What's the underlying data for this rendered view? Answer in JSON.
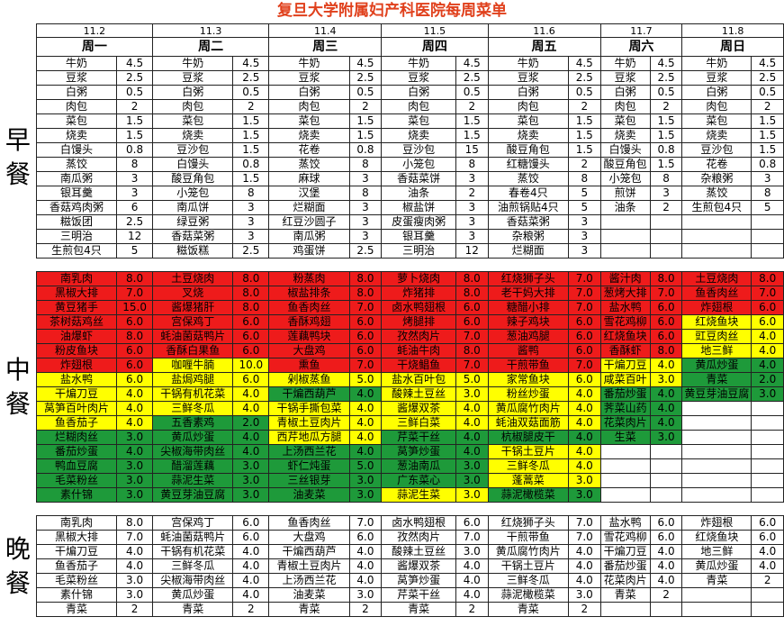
{
  "title": "复旦大学附属妇产科医院每周菜单",
  "days": [
    {
      "date": "11.2",
      "name": "周一"
    },
    {
      "date": "11.3",
      "name": "周二"
    },
    {
      "date": "11.4",
      "name": "周三"
    },
    {
      "date": "11.5",
      "name": "周四"
    },
    {
      "date": "11.6",
      "name": "周五"
    },
    {
      "date": "11.7",
      "name": "周六"
    },
    {
      "date": "11.8",
      "name": "周日"
    }
  ],
  "meals": {
    "breakfast": "早餐",
    "lunch": "中餐",
    "dinner": "晚餐"
  },
  "colors": {
    "red": "#ee1b1b",
    "yellow": "#ffff00",
    "green": "#1e9a3a",
    "title": "#e0401c"
  },
  "breakfast": [
    [
      [
        "牛奶",
        "4.5"
      ],
      [
        "牛奶",
        "4.5"
      ],
      [
        "牛奶",
        "4.5"
      ],
      [
        "牛奶",
        "4.5"
      ],
      [
        "牛奶",
        "4.5"
      ],
      [
        "牛奶",
        "4.5"
      ],
      [
        "牛奶",
        "4.5"
      ]
    ],
    [
      [
        "豆浆",
        "2.5"
      ],
      [
        "豆浆",
        "2.5"
      ],
      [
        "豆浆",
        "2.5"
      ],
      [
        "豆浆",
        "2.5"
      ],
      [
        "豆浆",
        "2.5"
      ],
      [
        "豆浆",
        "2.5"
      ],
      [
        "豆浆",
        "2.5"
      ]
    ],
    [
      [
        "白粥",
        "0.5"
      ],
      [
        "白粥",
        "0.5"
      ],
      [
        "白粥",
        "0.5"
      ],
      [
        "白粥",
        "0.5"
      ],
      [
        "白粥",
        "0.5"
      ],
      [
        "白粥",
        "0.5"
      ],
      [
        "白粥",
        "0.5"
      ]
    ],
    [
      [
        "肉包",
        "2"
      ],
      [
        "肉包",
        "2"
      ],
      [
        "肉包",
        "2"
      ],
      [
        "肉包",
        "2"
      ],
      [
        "肉包",
        "2"
      ],
      [
        "肉包",
        "2"
      ],
      [
        "肉包",
        "2"
      ]
    ],
    [
      [
        "菜包",
        "1.5"
      ],
      [
        "菜包",
        "1.5"
      ],
      [
        "菜包",
        "1.5"
      ],
      [
        "菜包",
        "1.5"
      ],
      [
        "菜包",
        "1.5"
      ],
      [
        "菜包",
        "1.5"
      ],
      [
        "菜包",
        "1.5"
      ]
    ],
    [
      [
        "烧卖",
        "1.5"
      ],
      [
        "烧卖",
        "1.5"
      ],
      [
        "烧卖",
        "1.5"
      ],
      [
        "烧卖",
        "1.5"
      ],
      [
        "烧卖",
        "1.5"
      ],
      [
        "烧卖",
        "1.5"
      ],
      [
        "烧卖",
        "1.5"
      ]
    ],
    [
      [
        "白馒头",
        "0.8"
      ],
      [
        "豆沙包",
        "1.5"
      ],
      [
        "花卷",
        "0.8"
      ],
      [
        "豆沙包",
        "15"
      ],
      [
        "酸豆角包",
        "1.5"
      ],
      [
        "白馒头",
        "0.8"
      ],
      [
        "豆沙包",
        "1.5"
      ]
    ],
    [
      [
        "蒸饺",
        "8"
      ],
      [
        "白馒头",
        "0.8"
      ],
      [
        "蒸饺",
        "8"
      ],
      [
        "小笼包",
        "8"
      ],
      [
        "红糖馒头",
        "2"
      ],
      [
        "酸豆角包",
        "1.5"
      ],
      [
        "花卷",
        "0.8"
      ]
    ],
    [
      [
        "南瓜粥",
        "3"
      ],
      [
        "酸豆角包",
        "1.5"
      ],
      [
        "麻球",
        "3"
      ],
      [
        "香菇菜饼",
        "3"
      ],
      [
        "蒸饺",
        "8"
      ],
      [
        "小笼包",
        "8"
      ],
      [
        "杂粮粥",
        "3"
      ]
    ],
    [
      [
        "银耳羹",
        "3"
      ],
      [
        "小笼包",
        "8"
      ],
      [
        "汉堡",
        "8"
      ],
      [
        "油条",
        "2"
      ],
      [
        "春卷4只",
        "5"
      ],
      [
        "煎饼",
        "3"
      ],
      [
        "蒸饺",
        "8"
      ]
    ],
    [
      [
        "香菇鸡肉粥",
        "6"
      ],
      [
        "南瓜饼",
        "3"
      ],
      [
        "烂糊面",
        "3"
      ],
      [
        "椒盐饼",
        "3"
      ],
      [
        "油煎锅贴4只",
        "5"
      ],
      [
        "油条",
        "2"
      ],
      [
        "生煎包4只",
        "5"
      ]
    ],
    [
      [
        "糍饭团",
        "2.5"
      ],
      [
        "绿豆粥",
        "3"
      ],
      [
        "红豆沙圆子",
        "3"
      ],
      [
        "皮蛋瘦肉粥",
        "3"
      ],
      [
        "香菇菜粥",
        "3"
      ],
      [
        "",
        ""
      ],
      [
        "",
        ""
      ]
    ],
    [
      [
        "三明治",
        "12"
      ],
      [
        "香菇菜粥",
        "3"
      ],
      [
        "南瓜粥",
        "3"
      ],
      [
        "银耳羹",
        "3"
      ],
      [
        "杂粮粥",
        "3"
      ],
      [
        "",
        ""
      ],
      [
        "",
        ""
      ]
    ],
    [
      [
        "生煎包4只",
        "5"
      ],
      [
        "糍饭糕",
        "2.5"
      ],
      [
        "鸡蛋饼",
        "2.5"
      ],
      [
        "三明治",
        "12"
      ],
      [
        "烂糊面",
        "3"
      ],
      [
        "",
        ""
      ],
      [
        "",
        ""
      ]
    ]
  ],
  "lunch": [
    [
      [
        "南乳肉",
        "8.0",
        "r"
      ],
      [
        "土豆烧肉",
        "8.0",
        "r"
      ],
      [
        "粉蒸肉",
        "8.0",
        "r"
      ],
      [
        "萝卜烧肉",
        "8.0",
        "r"
      ],
      [
        "红烧狮子头",
        "7.0",
        "r"
      ],
      [
        "酱汁肉",
        "8.0",
        "r"
      ],
      [
        "土豆烧肉",
        "8.0",
        "r"
      ]
    ],
    [
      [
        "黑椒大排",
        "7.0",
        "r"
      ],
      [
        "叉烧",
        "8.0",
        "r"
      ],
      [
        "椒盐排条",
        "8.0",
        "r"
      ],
      [
        "炸猪排",
        "8.0",
        "r"
      ],
      [
        "老干妈大排",
        "7.0",
        "r"
      ],
      [
        "葱烤大排",
        "7.0",
        "r"
      ],
      [
        "鱼香肉丝",
        "7.0",
        "r"
      ]
    ],
    [
      [
        "黄豆猪手",
        "15.0",
        "r"
      ],
      [
        "酱爆猪肝",
        "8.0",
        "r"
      ],
      [
        "鱼香肉丝",
        "7.0",
        "r"
      ],
      [
        "卤水鸭翅根",
        "6.0",
        "r"
      ],
      [
        "糖醋小排",
        "7.0",
        "r"
      ],
      [
        "盐水鸭",
        "6.0",
        "r"
      ],
      [
        "炸翅根",
        "6.0",
        "r"
      ]
    ],
    [
      [
        "茶树菇鸡丝",
        "6.0",
        "r"
      ],
      [
        "宫保鸡丁",
        "6.0",
        "r"
      ],
      [
        "香酥鸡翅",
        "6.0",
        "r"
      ],
      [
        "烤腿排",
        "6.0",
        "r"
      ],
      [
        "辣子鸡块",
        "6.0",
        "r"
      ],
      [
        "雪花鸡柳",
        "6.0",
        "r"
      ],
      [
        "红烧鱼块",
        "6.0",
        "y"
      ]
    ],
    [
      [
        "油爆虾",
        "8.0",
        "r"
      ],
      [
        "蚝油菌菇鸭片",
        "6.0",
        "r"
      ],
      [
        "莲藕鸭块",
        "6.0",
        "r"
      ],
      [
        "孜然肉片",
        "7.0",
        "r"
      ],
      [
        "葱油鸡腿",
        "6.0",
        "r"
      ],
      [
        "红烧鱼块",
        "6.0",
        "r"
      ],
      [
        "豇豆肉丝",
        "4.0",
        "y"
      ]
    ],
    [
      [
        "粉皮鱼块",
        "6.0",
        "r"
      ],
      [
        "香酥白果鱼",
        "6.0",
        "r"
      ],
      [
        "大盘鸡",
        "6.0",
        "r"
      ],
      [
        "蚝油牛肉",
        "8.0",
        "r"
      ],
      [
        "酱鸭",
        "6.0",
        "r"
      ],
      [
        "香酥虾",
        "8.0",
        "r"
      ],
      [
        "地三鲜",
        "4.0",
        "y"
      ]
    ],
    [
      [
        "炸翅根",
        "6.0",
        "r"
      ],
      [
        "咖喱牛腩",
        "10.0",
        "y"
      ],
      [
        "熏鱼",
        "7.0",
        "r"
      ],
      [
        "干烧鲳鱼",
        "7.0",
        "r"
      ],
      [
        "干煎带鱼",
        "7.0",
        "r"
      ],
      [
        "干煸刀豆",
        "4.0",
        "y"
      ],
      [
        "黄瓜炒蛋",
        "4.0",
        "g"
      ]
    ],
    [
      [
        "盐水鸭",
        "6.0",
        "y"
      ],
      [
        "盐焗鸡腿",
        "6.0",
        "y"
      ],
      [
        "剁椒蒸鱼",
        "5.0",
        "y"
      ],
      [
        "盐水百叶包",
        "5.0",
        "y"
      ],
      [
        "家常鱼块",
        "6.0",
        "y"
      ],
      [
        "咸菜百叶",
        "3.0",
        "y"
      ],
      [
        "青菜",
        "2.0",
        "g"
      ]
    ],
    [
      [
        "干煸刀豆",
        "4.0",
        "y"
      ],
      [
        "干锅有机花菜",
        "4.0",
        "y"
      ],
      [
        "干煸西葫芦",
        "4.0",
        "g"
      ],
      [
        "酸辣土豆丝",
        "3.0",
        "y"
      ],
      [
        "粉丝炒蛋",
        "4.0",
        "y"
      ],
      [
        "番茄炒蛋",
        "4.0",
        "g"
      ],
      [
        "黄豆芽油豆腐",
        "3.0",
        "g"
      ]
    ],
    [
      [
        "莴笋百叶肉片",
        "4.0",
        "y"
      ],
      [
        "三鲜冬瓜",
        "4.0",
        "y"
      ],
      [
        "干锅手撕包菜",
        "4.0",
        "y"
      ],
      [
        "酱爆双茶",
        "4.0",
        "y"
      ],
      [
        "黄瓜腐竹肉片",
        "4.0",
        "y"
      ],
      [
        "荠菜山药",
        "4.0",
        "g"
      ],
      [
        "",
        ""
      ]
    ],
    [
      [
        "鱼香茄子",
        "4.0",
        "y"
      ],
      [
        "五香素鸡",
        "2.0",
        "g"
      ],
      [
        "青椒土豆肉片",
        "4.0",
        "y"
      ],
      [
        "三鲜白菜",
        "4.0",
        "y"
      ],
      [
        "蚝油双菇面筋",
        "4.0",
        "y"
      ],
      [
        "花菜肉片",
        "4.0",
        "g"
      ],
      [
        "",
        ""
      ]
    ],
    [
      [
        "烂糊肉丝",
        "3.0",
        "g"
      ],
      [
        "黄瓜炒蛋",
        "4.0",
        "g"
      ],
      [
        "西芹地瓜方腿",
        "4.0",
        "y"
      ],
      [
        "芹菜干丝",
        "4.0",
        "g"
      ],
      [
        "杭椒腿皮干",
        "4.0",
        "g"
      ],
      [
        "生菜",
        "3.0",
        "g"
      ],
      [
        "",
        ""
      ]
    ],
    [
      [
        "番茄炒蛋",
        "4.0",
        "g"
      ],
      [
        "尖椒海带肉丝",
        "4.0",
        "g"
      ],
      [
        "上汤西兰花",
        "4.0",
        "g"
      ],
      [
        "莴笋炒蛋",
        "4.0",
        "g"
      ],
      [
        "干锅土豆片",
        "4.0",
        "y"
      ],
      [
        "",
        ""
      ],
      [
        "",
        ""
      ]
    ],
    [
      [
        "鸭血豆腐",
        "3.0",
        "g"
      ],
      [
        "醋溜莲藕",
        "3.0",
        "g"
      ],
      [
        "虾仁炖蛋",
        "5.0",
        "g"
      ],
      [
        "葱油南瓜",
        "3.0",
        "g"
      ],
      [
        "三鲜冬瓜",
        "4.0",
        "y"
      ],
      [
        "",
        ""
      ],
      [
        "",
        ""
      ]
    ],
    [
      [
        "毛菜粉丝",
        "3.0",
        "g"
      ],
      [
        "蒜泥生菜",
        "3.0",
        "g"
      ],
      [
        "三丝银芽",
        "3.0",
        "g"
      ],
      [
        "广东菜心",
        "3.0",
        "g"
      ],
      [
        "蓬蒿菜",
        "3.0",
        "y"
      ],
      [
        "",
        ""
      ],
      [
        "",
        ""
      ]
    ],
    [
      [
        "素什锦",
        "3.0",
        "g"
      ],
      [
        "黄豆芽油豆腐",
        "3.0",
        "g"
      ],
      [
        "油麦菜",
        "3.0",
        "g"
      ],
      [
        "蒜泥生菜",
        "3.0",
        "y"
      ],
      [
        "蒜泥橄榄菜",
        "3.0",
        "g"
      ],
      [
        "",
        ""
      ],
      [
        "",
        ""
      ]
    ]
  ],
  "dinner": [
    [
      [
        "南乳肉",
        "8.0"
      ],
      [
        "宫保鸡丁",
        "6.0"
      ],
      [
        "鱼香肉丝",
        "7.0"
      ],
      [
        "卤水鸭翅根",
        "6.0"
      ],
      [
        "红烧狮子头",
        "7.0"
      ],
      [
        "盐水鸭",
        "6.0"
      ],
      [
        "炸翅根",
        "6.0"
      ]
    ],
    [
      [
        "黑椒大排",
        "7.0"
      ],
      [
        "蚝油菌菇鸭片",
        "6.0"
      ],
      [
        "大盘鸡",
        "6.0"
      ],
      [
        "孜然肉片",
        "7.0"
      ],
      [
        "干煎带鱼",
        "7.0"
      ],
      [
        "雪花鸡柳",
        "6.0"
      ],
      [
        "红烧鱼块",
        "6.0"
      ]
    ],
    [
      [
        "干煸刀豆",
        "4.0"
      ],
      [
        "干锅有机花菜",
        "4.0"
      ],
      [
        "干煸西葫芦",
        "4.0"
      ],
      [
        "酸辣土豆丝",
        "3.0"
      ],
      [
        "黄瓜腐竹肉片",
        "4.0"
      ],
      [
        "干煸刀豆",
        "4.0"
      ],
      [
        "地三鲜",
        "4.0"
      ]
    ],
    [
      [
        "鱼香茄子",
        "4.0"
      ],
      [
        "三鲜冬瓜",
        "4.0"
      ],
      [
        "青椒土豆肉片",
        "4.0"
      ],
      [
        "酱爆双茶",
        "4.0"
      ],
      [
        "干锅土豆片",
        "4.0"
      ],
      [
        "番茄炒蛋",
        "4.0"
      ],
      [
        "黄瓜炒蛋",
        "4.0"
      ]
    ],
    [
      [
        "毛菜粉丝",
        "3.0"
      ],
      [
        "尖椒海带肉丝",
        "4.0"
      ],
      [
        "上汤西兰花",
        "4.0"
      ],
      [
        "莴笋炒蛋",
        "4.0"
      ],
      [
        "三鲜冬瓜",
        "4.0"
      ],
      [
        "花菜肉片",
        "4.0"
      ],
      [
        "青菜",
        "2"
      ]
    ],
    [
      [
        "素什锦",
        "3.0"
      ],
      [
        "黄瓜炒蛋",
        "4.0"
      ],
      [
        "油麦菜",
        "3.0"
      ],
      [
        "芹菜干丝",
        "4.0"
      ],
      [
        "蒜泥橄榄菜",
        "3.0"
      ],
      [
        "青菜",
        "2"
      ],
      [
        "",
        ""
      ]
    ],
    [
      [
        "青菜",
        "2"
      ],
      [
        "青菜",
        "2"
      ],
      [
        "青菜",
        "2"
      ],
      [
        "青菜",
        "2"
      ],
      [
        "青菜",
        "2"
      ],
      [
        "",
        ""
      ],
      [
        "",
        ""
      ]
    ]
  ]
}
